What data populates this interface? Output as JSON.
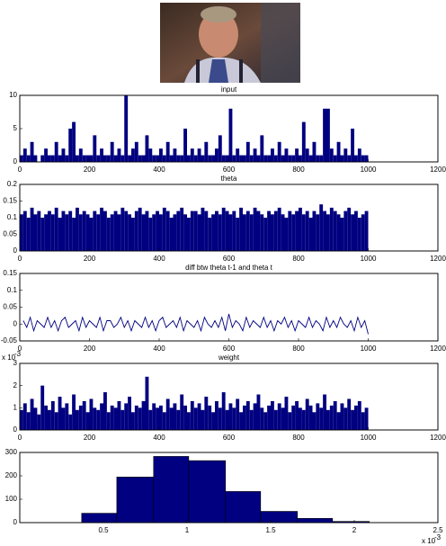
{
  "chart_data": [
    {
      "type": "bar",
      "title": "input",
      "color": "#000080",
      "x": [
        10,
        20,
        30,
        40,
        50,
        60,
        70,
        80,
        90,
        100,
        110,
        120,
        130,
        140,
        150,
        160,
        170,
        180,
        190,
        200,
        210,
        220,
        230,
        240,
        250,
        260,
        270,
        280,
        290,
        300,
        310,
        320,
        330,
        340,
        350,
        360,
        370,
        380,
        390,
        400,
        410,
        420,
        430,
        440,
        450,
        460,
        470,
        480,
        490,
        500,
        510,
        520,
        530,
        540,
        550,
        560,
        570,
        580,
        590,
        600,
        610,
        620,
        630,
        640,
        650,
        660,
        670,
        680,
        690,
        700,
        710,
        720,
        730,
        740,
        750,
        760,
        770,
        780,
        790,
        800,
        810,
        820,
        830,
        840,
        850,
        860,
        870,
        880,
        890,
        900,
        910,
        920,
        930,
        940,
        950,
        960,
        970,
        980,
        990,
        1000
      ],
      "values": [
        1,
        2,
        1,
        3,
        1,
        0,
        1,
        2,
        1,
        1,
        3,
        1,
        2,
        1,
        5,
        6,
        1,
        2,
        1,
        1,
        1,
        4,
        1,
        2,
        1,
        1,
        3,
        1,
        2,
        1,
        10,
        1,
        2,
        3,
        1,
        1,
        4,
        2,
        1,
        1,
        2,
        1,
        3,
        1,
        2,
        1,
        1,
        5,
        1,
        2,
        1,
        2,
        1,
        3,
        1,
        1,
        2,
        4,
        1,
        1,
        8,
        1,
        2,
        1,
        1,
        3,
        1,
        2,
        1,
        4,
        1,
        1,
        2,
        1,
        3,
        1,
        2,
        1,
        1,
        2,
        1,
        6,
        2,
        1,
        3,
        1,
        1,
        8,
        8,
        2,
        1,
        3,
        1,
        2,
        1,
        5,
        1,
        2,
        1,
        1
      ],
      "xlim": [
        0,
        1200
      ],
      "xticks": [
        0,
        200,
        400,
        600,
        800,
        1000,
        1200
      ],
      "ylim": [
        0,
        10
      ],
      "yticks": [
        0,
        5,
        10
      ]
    },
    {
      "type": "bar",
      "title": "theta",
      "color": "#000080",
      "x": [
        10,
        20,
        30,
        40,
        50,
        60,
        70,
        80,
        90,
        100,
        110,
        120,
        130,
        140,
        150,
        160,
        170,
        180,
        190,
        200,
        210,
        220,
        230,
        240,
        250,
        260,
        270,
        280,
        290,
        300,
        310,
        320,
        330,
        340,
        350,
        360,
        370,
        380,
        390,
        400,
        410,
        420,
        430,
        440,
        450,
        460,
        470,
        480,
        490,
        500,
        510,
        520,
        530,
        540,
        550,
        560,
        570,
        580,
        590,
        600,
        610,
        620,
        630,
        640,
        650,
        660,
        670,
        680,
        690,
        700,
        710,
        720,
        730,
        740,
        750,
        760,
        770,
        780,
        790,
        800,
        810,
        820,
        830,
        840,
        850,
        860,
        870,
        880,
        890,
        900,
        910,
        920,
        930,
        940,
        950,
        960,
        970,
        980,
        990,
        1000
      ],
      "values": [
        0.11,
        0.12,
        0.1,
        0.13,
        0.11,
        0.12,
        0.1,
        0.11,
        0.12,
        0.11,
        0.13,
        0.1,
        0.12,
        0.11,
        0.12,
        0.1,
        0.13,
        0.11,
        0.12,
        0.11,
        0.1,
        0.12,
        0.11,
        0.13,
        0.12,
        0.1,
        0.11,
        0.12,
        0.11,
        0.13,
        0.12,
        0.11,
        0.1,
        0.12,
        0.13,
        0.11,
        0.12,
        0.1,
        0.11,
        0.12,
        0.11,
        0.13,
        0.12,
        0.1,
        0.11,
        0.12,
        0.13,
        0.11,
        0.1,
        0.12,
        0.12,
        0.11,
        0.13,
        0.12,
        0.1,
        0.11,
        0.12,
        0.11,
        0.13,
        0.12,
        0.11,
        0.12,
        0.1,
        0.13,
        0.11,
        0.12,
        0.11,
        0.13,
        0.12,
        0.11,
        0.1,
        0.12,
        0.11,
        0.12,
        0.13,
        0.11,
        0.1,
        0.12,
        0.11,
        0.12,
        0.13,
        0.11,
        0.12,
        0.1,
        0.12,
        0.11,
        0.14,
        0.12,
        0.11,
        0.13,
        0.12,
        0.11,
        0.1,
        0.12,
        0.13,
        0.11,
        0.12,
        0.1,
        0.11,
        0.12
      ],
      "xlim": [
        0,
        1200
      ],
      "xticks": [
        0,
        200,
        400,
        600,
        800,
        1000,
        1200
      ],
      "ylim": [
        0,
        0.2
      ],
      "yticks": [
        0,
        0.05,
        0.1,
        0.15,
        0.2
      ]
    },
    {
      "type": "line",
      "title": "diff btw theta t-1 and theta t",
      "color": "#000080",
      "x": [
        10,
        20,
        30,
        40,
        50,
        60,
        70,
        80,
        90,
        100,
        110,
        120,
        130,
        140,
        150,
        160,
        170,
        180,
        190,
        200,
        210,
        220,
        230,
        240,
        250,
        260,
        270,
        280,
        290,
        300,
        310,
        320,
        330,
        340,
        350,
        360,
        370,
        380,
        390,
        400,
        410,
        420,
        430,
        440,
        450,
        460,
        470,
        480,
        490,
        500,
        510,
        520,
        530,
        540,
        550,
        560,
        570,
        580,
        590,
        600,
        610,
        620,
        630,
        640,
        650,
        660,
        670,
        680,
        690,
        700,
        710,
        720,
        730,
        740,
        750,
        760,
        770,
        780,
        790,
        800,
        810,
        820,
        830,
        840,
        850,
        860,
        870,
        880,
        890,
        900,
        910,
        920,
        930,
        940,
        950,
        960,
        970,
        980,
        990,
        1000
      ],
      "values": [
        0.01,
        -0.01,
        0.02,
        -0.02,
        0.01,
        0,
        -0.01,
        0.02,
        -0.01,
        0.01,
        -0.02,
        0.01,
        0.02,
        -0.01,
        0,
        0.01,
        -0.02,
        0.02,
        -0.01,
        0.01,
        0,
        -0.01,
        0.02,
        -0.02,
        0.01,
        0.01,
        -0.01,
        0,
        0.02,
        -0.01,
        0.01,
        -0.02,
        0.01,
        0,
        -0.01,
        0.02,
        -0.01,
        0.01,
        -0.02,
        0.01,
        0.02,
        -0.01,
        0,
        0.01,
        -0.01,
        0.02,
        -0.02,
        0.01,
        0,
        -0.01,
        0.01,
        -0.02,
        0.02,
        0,
        -0.01,
        0.01,
        -0.01,
        0.02,
        -0.02,
        0.03,
        -0.01,
        0.01,
        0,
        -0.02,
        0.02,
        -0.01,
        0.01,
        0,
        -0.01,
        0.02,
        -0.01,
        0.01,
        -0.02,
        0.01,
        0,
        0.02,
        -0.01,
        0.01,
        -0.02,
        0.01,
        0,
        -0.01,
        0.02,
        -0.01,
        0.01,
        0,
        -0.02,
        0.02,
        -0.01,
        0.01,
        -0.01,
        0.02,
        0,
        -0.01,
        0.01,
        -0.02,
        0.02,
        -0.01,
        0.01,
        -0.03
      ],
      "xlim": [
        0,
        1200
      ],
      "xticks": [
        0,
        200,
        400,
        600,
        800,
        1000,
        1200
      ],
      "ylim": [
        -0.05,
        0.15
      ],
      "yticks": [
        -0.05,
        0,
        0.05,
        0.1,
        0.15
      ]
    },
    {
      "type": "bar",
      "title": "weight",
      "color": "#000080",
      "exponent_base": "x 10",
      "exponent_power": "-3",
      "x": [
        10,
        20,
        30,
        40,
        50,
        60,
        70,
        80,
        90,
        100,
        110,
        120,
        130,
        140,
        150,
        160,
        170,
        180,
        190,
        200,
        210,
        220,
        230,
        240,
        250,
        260,
        270,
        280,
        290,
        300,
        310,
        320,
        330,
        340,
        350,
        360,
        370,
        380,
        390,
        400,
        410,
        420,
        430,
        440,
        450,
        460,
        470,
        480,
        490,
        500,
        510,
        520,
        530,
        540,
        550,
        560,
        570,
        580,
        590,
        600,
        610,
        620,
        630,
        640,
        650,
        660,
        670,
        680,
        690,
        700,
        710,
        720,
        730,
        740,
        750,
        760,
        770,
        780,
        790,
        800,
        810,
        820,
        830,
        840,
        850,
        860,
        870,
        880,
        890,
        900,
        910,
        920,
        930,
        940,
        950,
        960,
        970,
        980,
        990,
        1000
      ],
      "values": [
        0.9,
        1.2,
        0.8,
        1.4,
        1,
        0.7,
        2,
        1.1,
        0.9,
        1.3,
        0.8,
        1.5,
        1,
        1.2,
        0.7,
        1.6,
        0.9,
        1.1,
        1.3,
        0.8,
        1.4,
        1,
        0.9,
        1.2,
        1.7,
        0.8,
        1.1,
        1,
        1.3,
        0.9,
        1.2,
        1.5,
        0.8,
        1.1,
        1,
        1.3,
        2.4,
        0.9,
        1.2,
        1,
        1.1,
        0.8,
        1.4,
        1,
        1.2,
        0.9,
        1.6,
        1.1,
        0.8,
        1.3,
        1,
        1.2,
        0.9,
        1.5,
        1.1,
        0.8,
        1.3,
        1,
        1.7,
        0.9,
        1.2,
        1,
        1.4,
        0.8,
        1.1,
        1.3,
        0.9,
        1.2,
        1.6,
        1,
        0.8,
        1.1,
        1.3,
        0.9,
        1.2,
        1,
        1.5,
        0.8,
        1.1,
        1.3,
        1,
        0.9,
        1.4,
        1.1,
        0.8,
        1.2,
        1,
        1.6,
        0.9,
        1.1,
        1.3,
        0.8,
        1.2,
        1,
        1.4,
        0.9,
        1.1,
        1.3,
        0.8,
        1
      ],
      "xlim": [
        0,
        1200
      ],
      "xticks": [
        0,
        200,
        400,
        600,
        800,
        1000,
        1200
      ],
      "ylim": [
        0,
        3
      ],
      "yticks": [
        0,
        1,
        2,
        3
      ]
    },
    {
      "type": "histogram",
      "color": "#000080",
      "exponent_base": "x 10",
      "exponent_power": "-3",
      "bins": [
        0.37,
        0.58,
        0.8,
        1.01,
        1.23,
        1.44,
        1.66,
        1.87,
        2.09
      ],
      "values": [
        40,
        195,
        283,
        265,
        133,
        48,
        18,
        5
      ],
      "xlim": [
        0,
        2.5
      ],
      "xticks": [
        0.5,
        1,
        1.5,
        2,
        2.5
      ],
      "ylim": [
        0,
        300
      ],
      "yticks": [
        0,
        100,
        200,
        300
      ]
    }
  ]
}
